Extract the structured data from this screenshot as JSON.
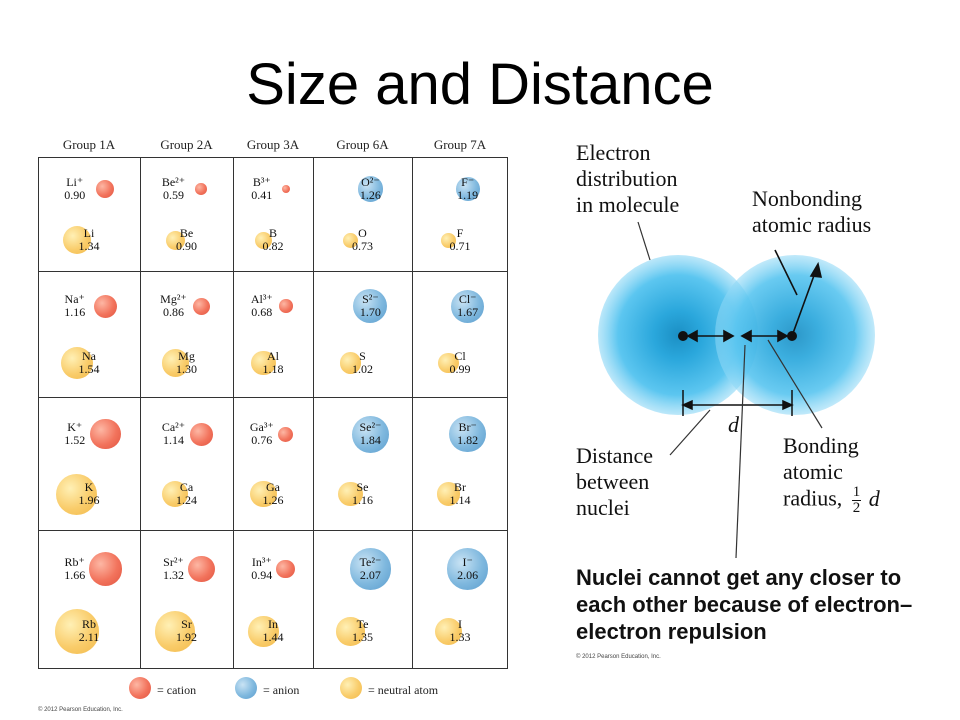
{
  "title": "Size and Distance",
  "table": {
    "headers": [
      "Group 1A",
      "Group 2A",
      "Group 3A",
      "Group 6A",
      "Group 7A"
    ],
    "rows": [
      [
        {
          "ion": "Li⁺",
          "ion_r": "0.90",
          "ion_type": "cation",
          "atom": "Li",
          "atom_r": "1.34"
        },
        {
          "ion": "Be²⁺",
          "ion_r": "0.59",
          "ion_type": "cation",
          "atom": "Be",
          "atom_r": "0.90"
        },
        {
          "ion": "B³⁺",
          "ion_r": "0.41",
          "ion_type": "cation",
          "atom": "B",
          "atom_r": "0.82"
        },
        {
          "ion": "O²⁻",
          "ion_r": "1.26",
          "ion_type": "anion",
          "atom": "O",
          "atom_r": "0.73"
        },
        {
          "ion": "F⁻",
          "ion_r": "1.19",
          "ion_type": "anion",
          "atom": "F",
          "atom_r": "0.71"
        }
      ],
      [
        {
          "ion": "Na⁺",
          "ion_r": "1.16",
          "ion_type": "cation",
          "atom": "Na",
          "atom_r": "1.54"
        },
        {
          "ion": "Mg²⁺",
          "ion_r": "0.86",
          "ion_type": "cation",
          "atom": "Mg",
          "atom_r": "1.30"
        },
        {
          "ion": "Al³⁺",
          "ion_r": "0.68",
          "ion_type": "cation",
          "atom": "Al",
          "atom_r": "1.18"
        },
        {
          "ion": "S²⁻",
          "ion_r": "1.70",
          "ion_type": "anion",
          "atom": "S",
          "atom_r": "1.02"
        },
        {
          "ion": "Cl⁻",
          "ion_r": "1.67",
          "ion_type": "anion",
          "atom": "Cl",
          "atom_r": "0.99"
        }
      ],
      [
        {
          "ion": "K⁺",
          "ion_r": "1.52",
          "ion_type": "cation",
          "atom": "K",
          "atom_r": "1.96"
        },
        {
          "ion": "Ca²⁺",
          "ion_r": "1.14",
          "ion_type": "cation",
          "atom": "Ca",
          "atom_r": "1.24"
        },
        {
          "ion": "Ga³⁺",
          "ion_r": "0.76",
          "ion_type": "cation",
          "atom": "Ga",
          "atom_r": "1.26"
        },
        {
          "ion": "Se²⁻",
          "ion_r": "1.84",
          "ion_type": "anion",
          "atom": "Se",
          "atom_r": "1.16"
        },
        {
          "ion": "Br⁻",
          "ion_r": "1.82",
          "ion_type": "anion",
          "atom": "Br",
          "atom_r": "1.14"
        }
      ],
      [
        {
          "ion": "Rb⁺",
          "ion_r": "1.66",
          "ion_type": "cation",
          "atom": "Rb",
          "atom_r": "2.11"
        },
        {
          "ion": "Sr²⁺",
          "ion_r": "1.32",
          "ion_type": "cation",
          "atom": "Sr",
          "atom_r": "1.92"
        },
        {
          "ion": "In³⁺",
          "ion_r": "0.94",
          "ion_type": "cation",
          "atom": "In",
          "atom_r": "1.44"
        },
        {
          "ion": "Te²⁻",
          "ion_r": "2.07",
          "ion_type": "anion",
          "atom": "Te",
          "atom_r": "1.35"
        },
        {
          "ion": "I⁻",
          "ion_r": "2.06",
          "ion_type": "anion",
          "atom": "I",
          "atom_r": "1.33"
        }
      ]
    ]
  },
  "legend": {
    "cation": "= cation",
    "anion": "= anion",
    "neutral": "= neutral atom"
  },
  "colors": {
    "cation": "#f06a55",
    "anion": "#6aaedb",
    "neutral": "#f7c45a",
    "cloud": "#3fb6ea"
  },
  "copyright": "© 2012 Pearson Education, Inc.",
  "diagram": {
    "electron_label": [
      "Electron",
      "distribution",
      "in molecule"
    ],
    "nonbonding_label": [
      "Nonbonding",
      "atomic radius"
    ],
    "d_label": "d",
    "distance_label": [
      "Distance",
      "between",
      "nuclei"
    ],
    "bonding_label": [
      "Bonding",
      "atomic",
      "radius,"
    ],
    "half_num": "1",
    "half_den": "2",
    "half_d": "d",
    "note": "Nuclei cannot get any closer to each other because of electron–electron repulsion"
  }
}
